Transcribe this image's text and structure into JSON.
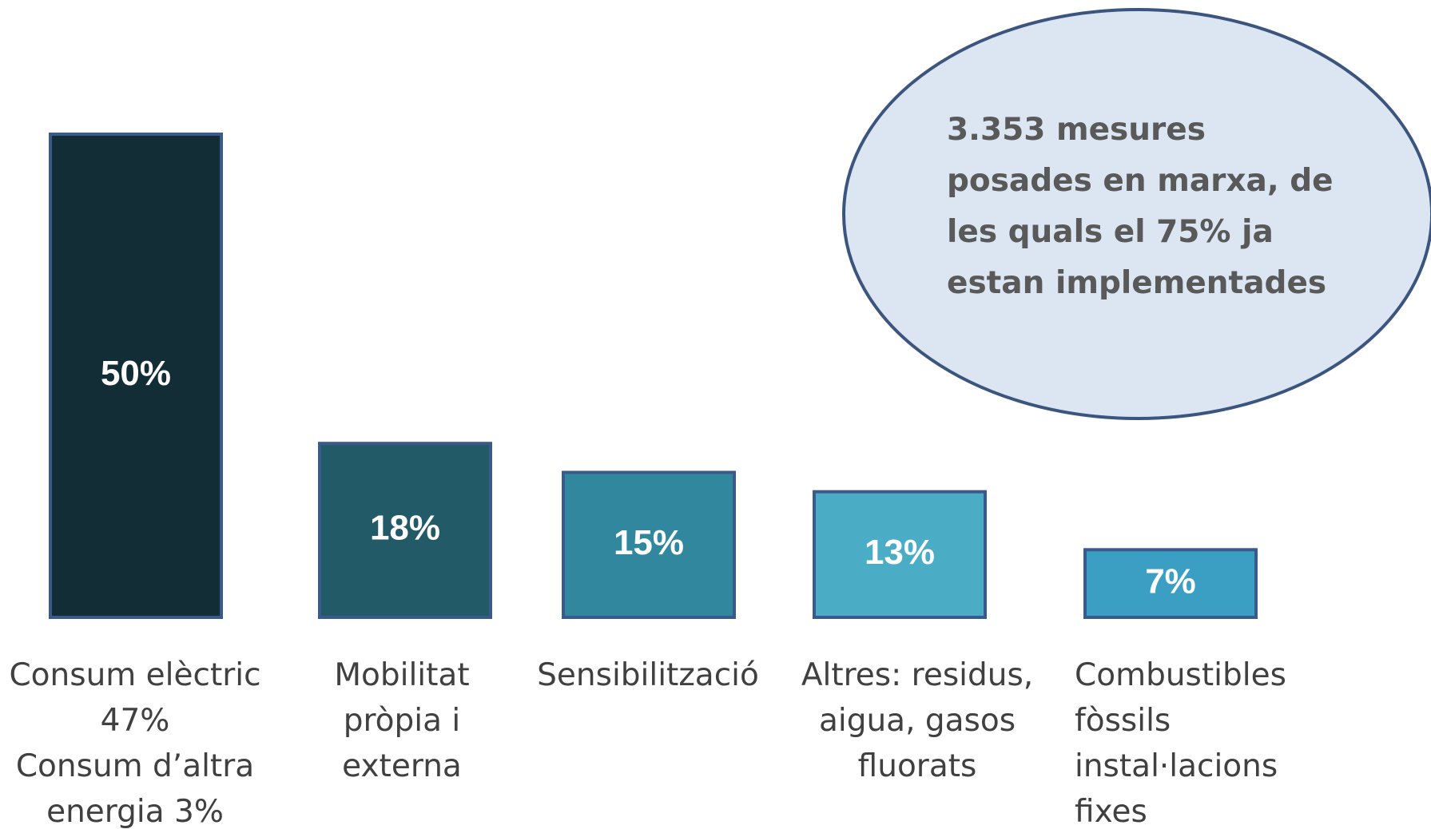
{
  "chart_data": {
    "type": "bar",
    "categories": [
      "Consum elèctric\n47%\nConsum d’altra\nenergia 3%",
      "Mobilitat\npròpia i\nexterna",
      "Sensibilització",
      "Altres: residus,\naigua, gasos\nfluorats",
      "Combustibles\nfòssils\ninstal·lacions\nfixes"
    ],
    "values": [
      50,
      18,
      15,
      13,
      7
    ],
    "value_labels": [
      "50%",
      "18%",
      "15%",
      "13%",
      "7%"
    ],
    "colors": [
      "#132d36",
      "#235a68",
      "#31879e",
      "#4bacc6",
      "#3a9fc2"
    ],
    "annotation": "3.353 mesures\nposades en marxa, de\nles quals el 75% ja\nestan implementades"
  }
}
